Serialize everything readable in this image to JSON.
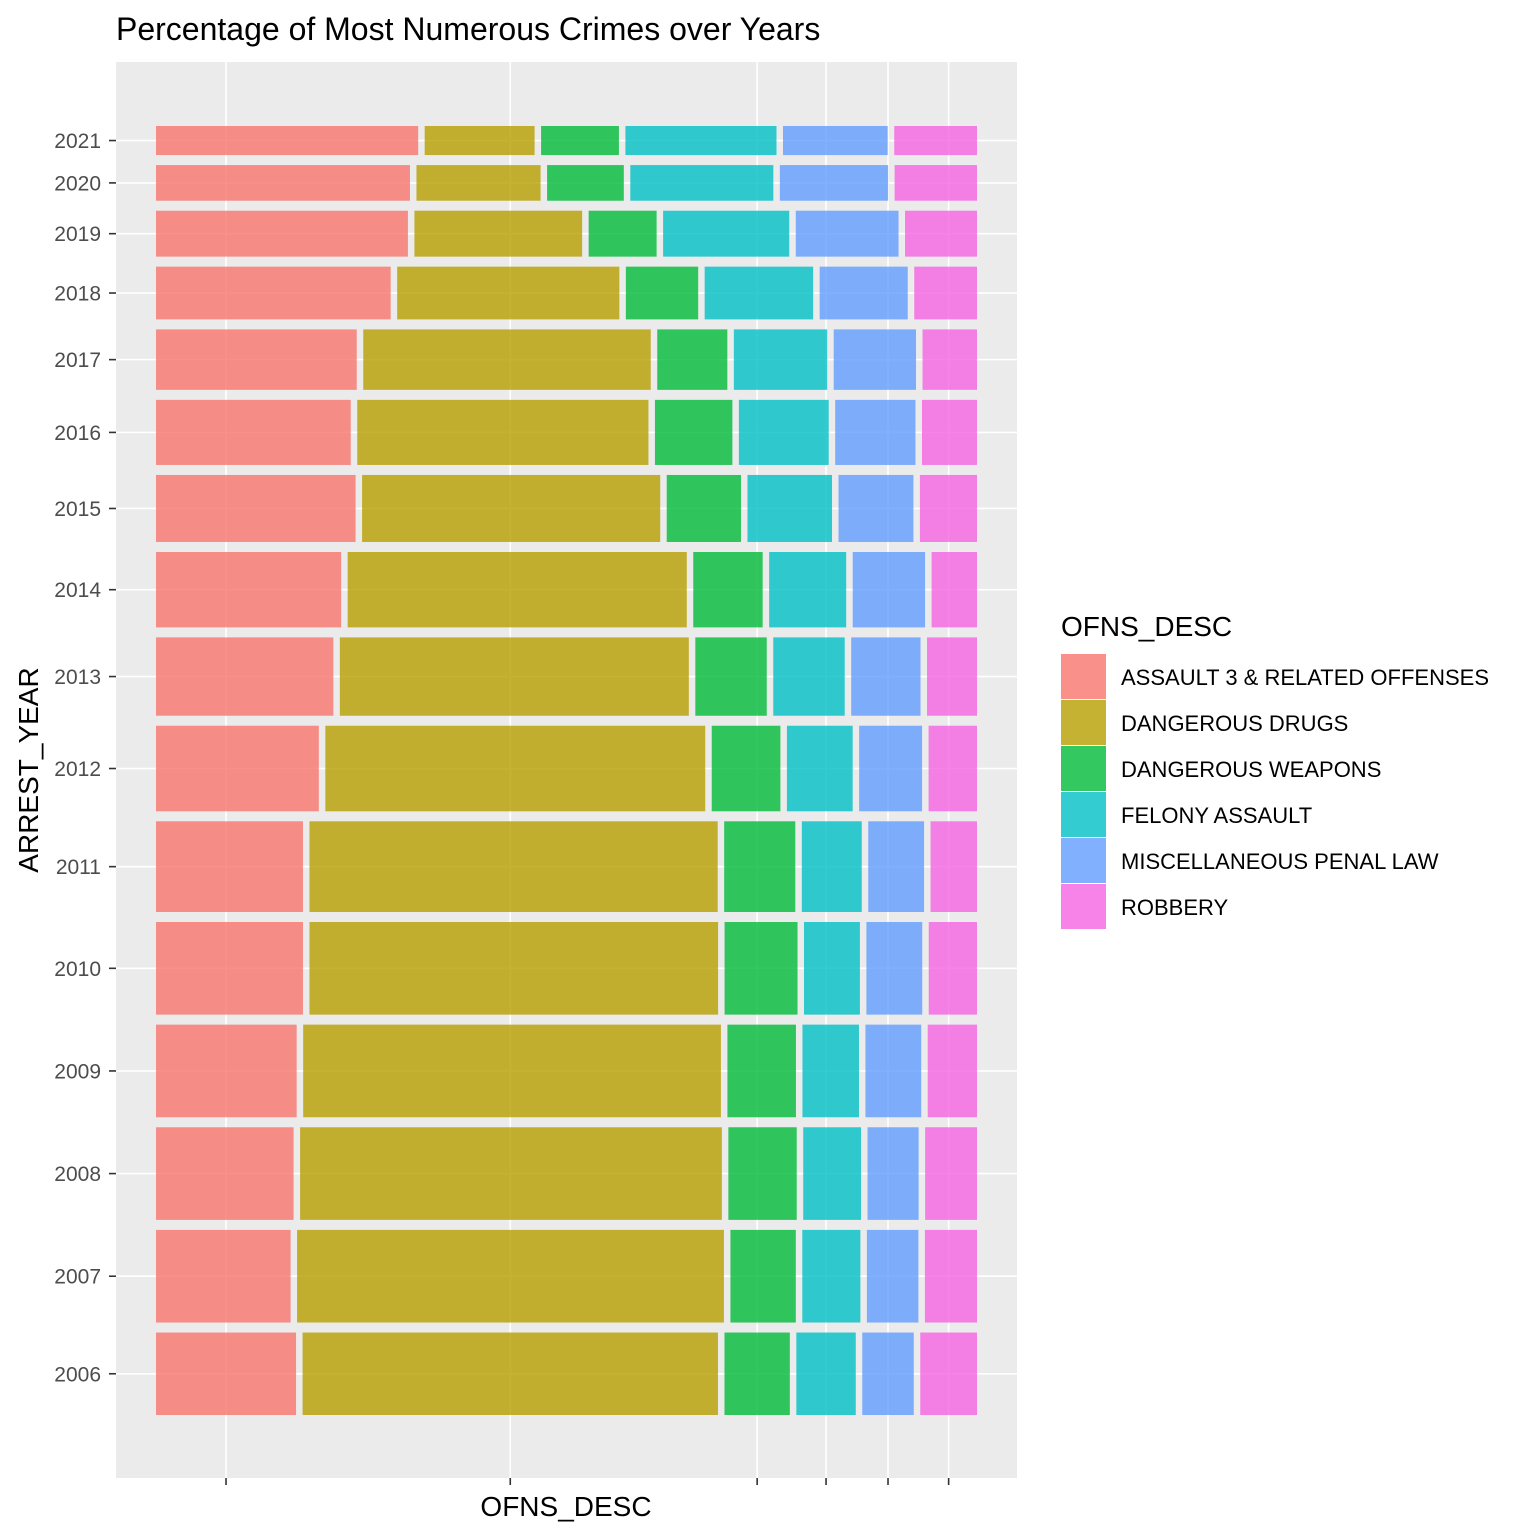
{
  "chart_data": {
    "type": "mosaic",
    "title": "Percentage of Most Numerous Crimes over Years",
    "xlabel": "OFNS_DESC",
    "ylabel": "ARREST_YEAR",
    "legend": {
      "title": "OFNS_DESC",
      "position": "right",
      "entries": [
        {
          "label": "ASSAULT 3 & RELATED OFFENSES",
          "color": "#F8766D"
        },
        {
          "label": "DANGEROUS DRUGS",
          "color": "#B79F00"
        },
        {
          "label": "DANGEROUS WEAPONS",
          "color": "#00BA38"
        },
        {
          "label": "FELONY ASSAULT",
          "color": "#00BFC4"
        },
        {
          "label": "MISCELLANEOUS PENAL LAW",
          "color": "#619CFF"
        },
        {
          "label": "ROBBERY",
          "color": "#F564E3"
        }
      ]
    },
    "categories": [
      "ASSAULT 3 & RELATED OFFENSES",
      "DANGEROUS DRUGS",
      "DANGEROUS WEAPONS",
      "FELONY ASSAULT",
      "MISCELLANEOUS PENAL LAW",
      "ROBBERY"
    ],
    "rows": [
      {
        "year": "2006",
        "weight": 0.0641,
        "shares": [
          0.1787,
          0.53,
          0.0834,
          0.0758,
          0.0657,
          0.0724
        ]
      },
      {
        "year": "2007",
        "weight": 0.072,
        "shares": [
          0.1717,
          0.5446,
          0.0834,
          0.0741,
          0.0657,
          0.0665
        ]
      },
      {
        "year": "2008",
        "weight": 0.072,
        "shares": [
          0.1745,
          0.5349,
          0.0867,
          0.0733,
          0.0648,
          0.0658
        ]
      },
      {
        "year": "2009",
        "weight": 0.072,
        "shares": [
          0.1784,
          0.5298,
          0.0869,
          0.0717,
          0.0707,
          0.0625
        ]
      },
      {
        "year": "2010",
        "weight": 0.072,
        "shares": [
          0.1864,
          0.5182,
          0.0925,
          0.0709,
          0.0708,
          0.0612
        ]
      },
      {
        "year": "2011",
        "weight": 0.0705,
        "shares": [
          0.1864,
          0.5177,
          0.0902,
          0.076,
          0.0708,
          0.0589
        ]
      },
      {
        "year": "2012",
        "weight": 0.0665,
        "shares": [
          0.2065,
          0.4818,
          0.0871,
          0.0834,
          0.0798,
          0.0614
        ]
      },
      {
        "year": "2013",
        "weight": 0.0609,
        "shares": [
          0.2249,
          0.4426,
          0.0906,
          0.0906,
          0.0879,
          0.0634
        ]
      },
      {
        "year": "2014",
        "weight": 0.0586,
        "shares": [
          0.2348,
          0.4301,
          0.088,
          0.0977,
          0.0918,
          0.0576
        ]
      },
      {
        "year": "2015",
        "weight": 0.0521,
        "shares": [
          0.2531,
          0.3781,
          0.0942,
          0.1072,
          0.095,
          0.0724
        ]
      },
      {
        "year": "2016",
        "weight": 0.0506,
        "shares": [
          0.247,
          0.3693,
          0.0982,
          0.1139,
          0.1018,
          0.0698
        ]
      },
      {
        "year": "2017",
        "weight": 0.047,
        "shares": [
          0.2546,
          0.3646,
          0.0889,
          0.1184,
          0.1044,
          0.0691
        ]
      },
      {
        "year": "2018",
        "weight": 0.041,
        "shares": [
          0.2976,
          0.2818,
          0.0917,
          0.1376,
          0.1117,
          0.0796
        ]
      },
      {
        "year": "2019",
        "weight": 0.0357,
        "shares": [
          0.3195,
          0.2127,
          0.0862,
          0.16,
          0.1303,
          0.0913
        ]
      },
      {
        "year": "2020",
        "weight": 0.0277,
        "shares": [
          0.3221,
          0.1574,
          0.0973,
          0.1814,
          0.1373,
          0.1045
        ]
      },
      {
        "year": "2021",
        "weight": 0.0226,
        "shares": [
          0.3325,
          0.1394,
          0.0987,
          0.1916,
          0.1328,
          0.105
        ]
      }
    ],
    "grid": true
  }
}
